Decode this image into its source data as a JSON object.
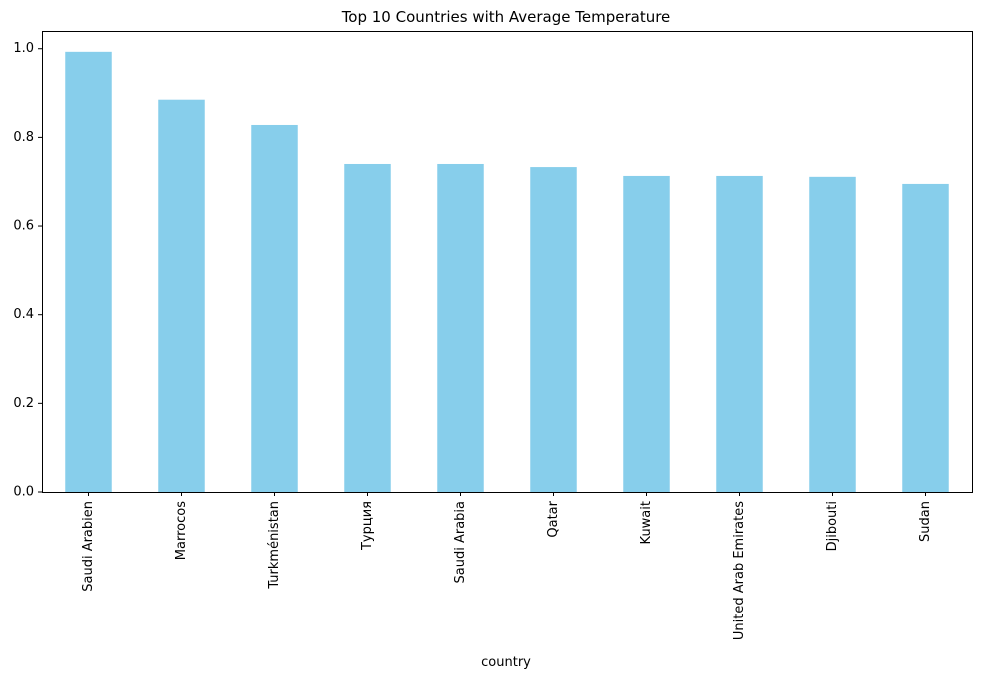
{
  "chart_data": {
    "type": "bar",
    "title": "Top 10 Countries with Average Temperature",
    "xlabel": "country",
    "ylabel": "",
    "categories": [
      "Saudi Arabien",
      "Marrocos",
      "Turkménistan",
      "Турция",
      "Saudi Arabia",
      "Qatar",
      "Kuwait",
      "United Arab Emirates",
      "Djibouti",
      "Sudan"
    ],
    "values": [
      0.993,
      0.885,
      0.828,
      0.74,
      0.74,
      0.733,
      0.713,
      0.713,
      0.711,
      0.695
    ],
    "ylim": [
      0,
      1.04
    ],
    "yticks": [
      0.0,
      0.2,
      0.4,
      0.6,
      0.8,
      1.0
    ],
    "ytick_labels": [
      "0.0",
      "0.2",
      "0.4",
      "0.6",
      "0.8",
      "1.0"
    ],
    "bar_color": "#87ceeb",
    "grid": false,
    "legend": "none"
  }
}
